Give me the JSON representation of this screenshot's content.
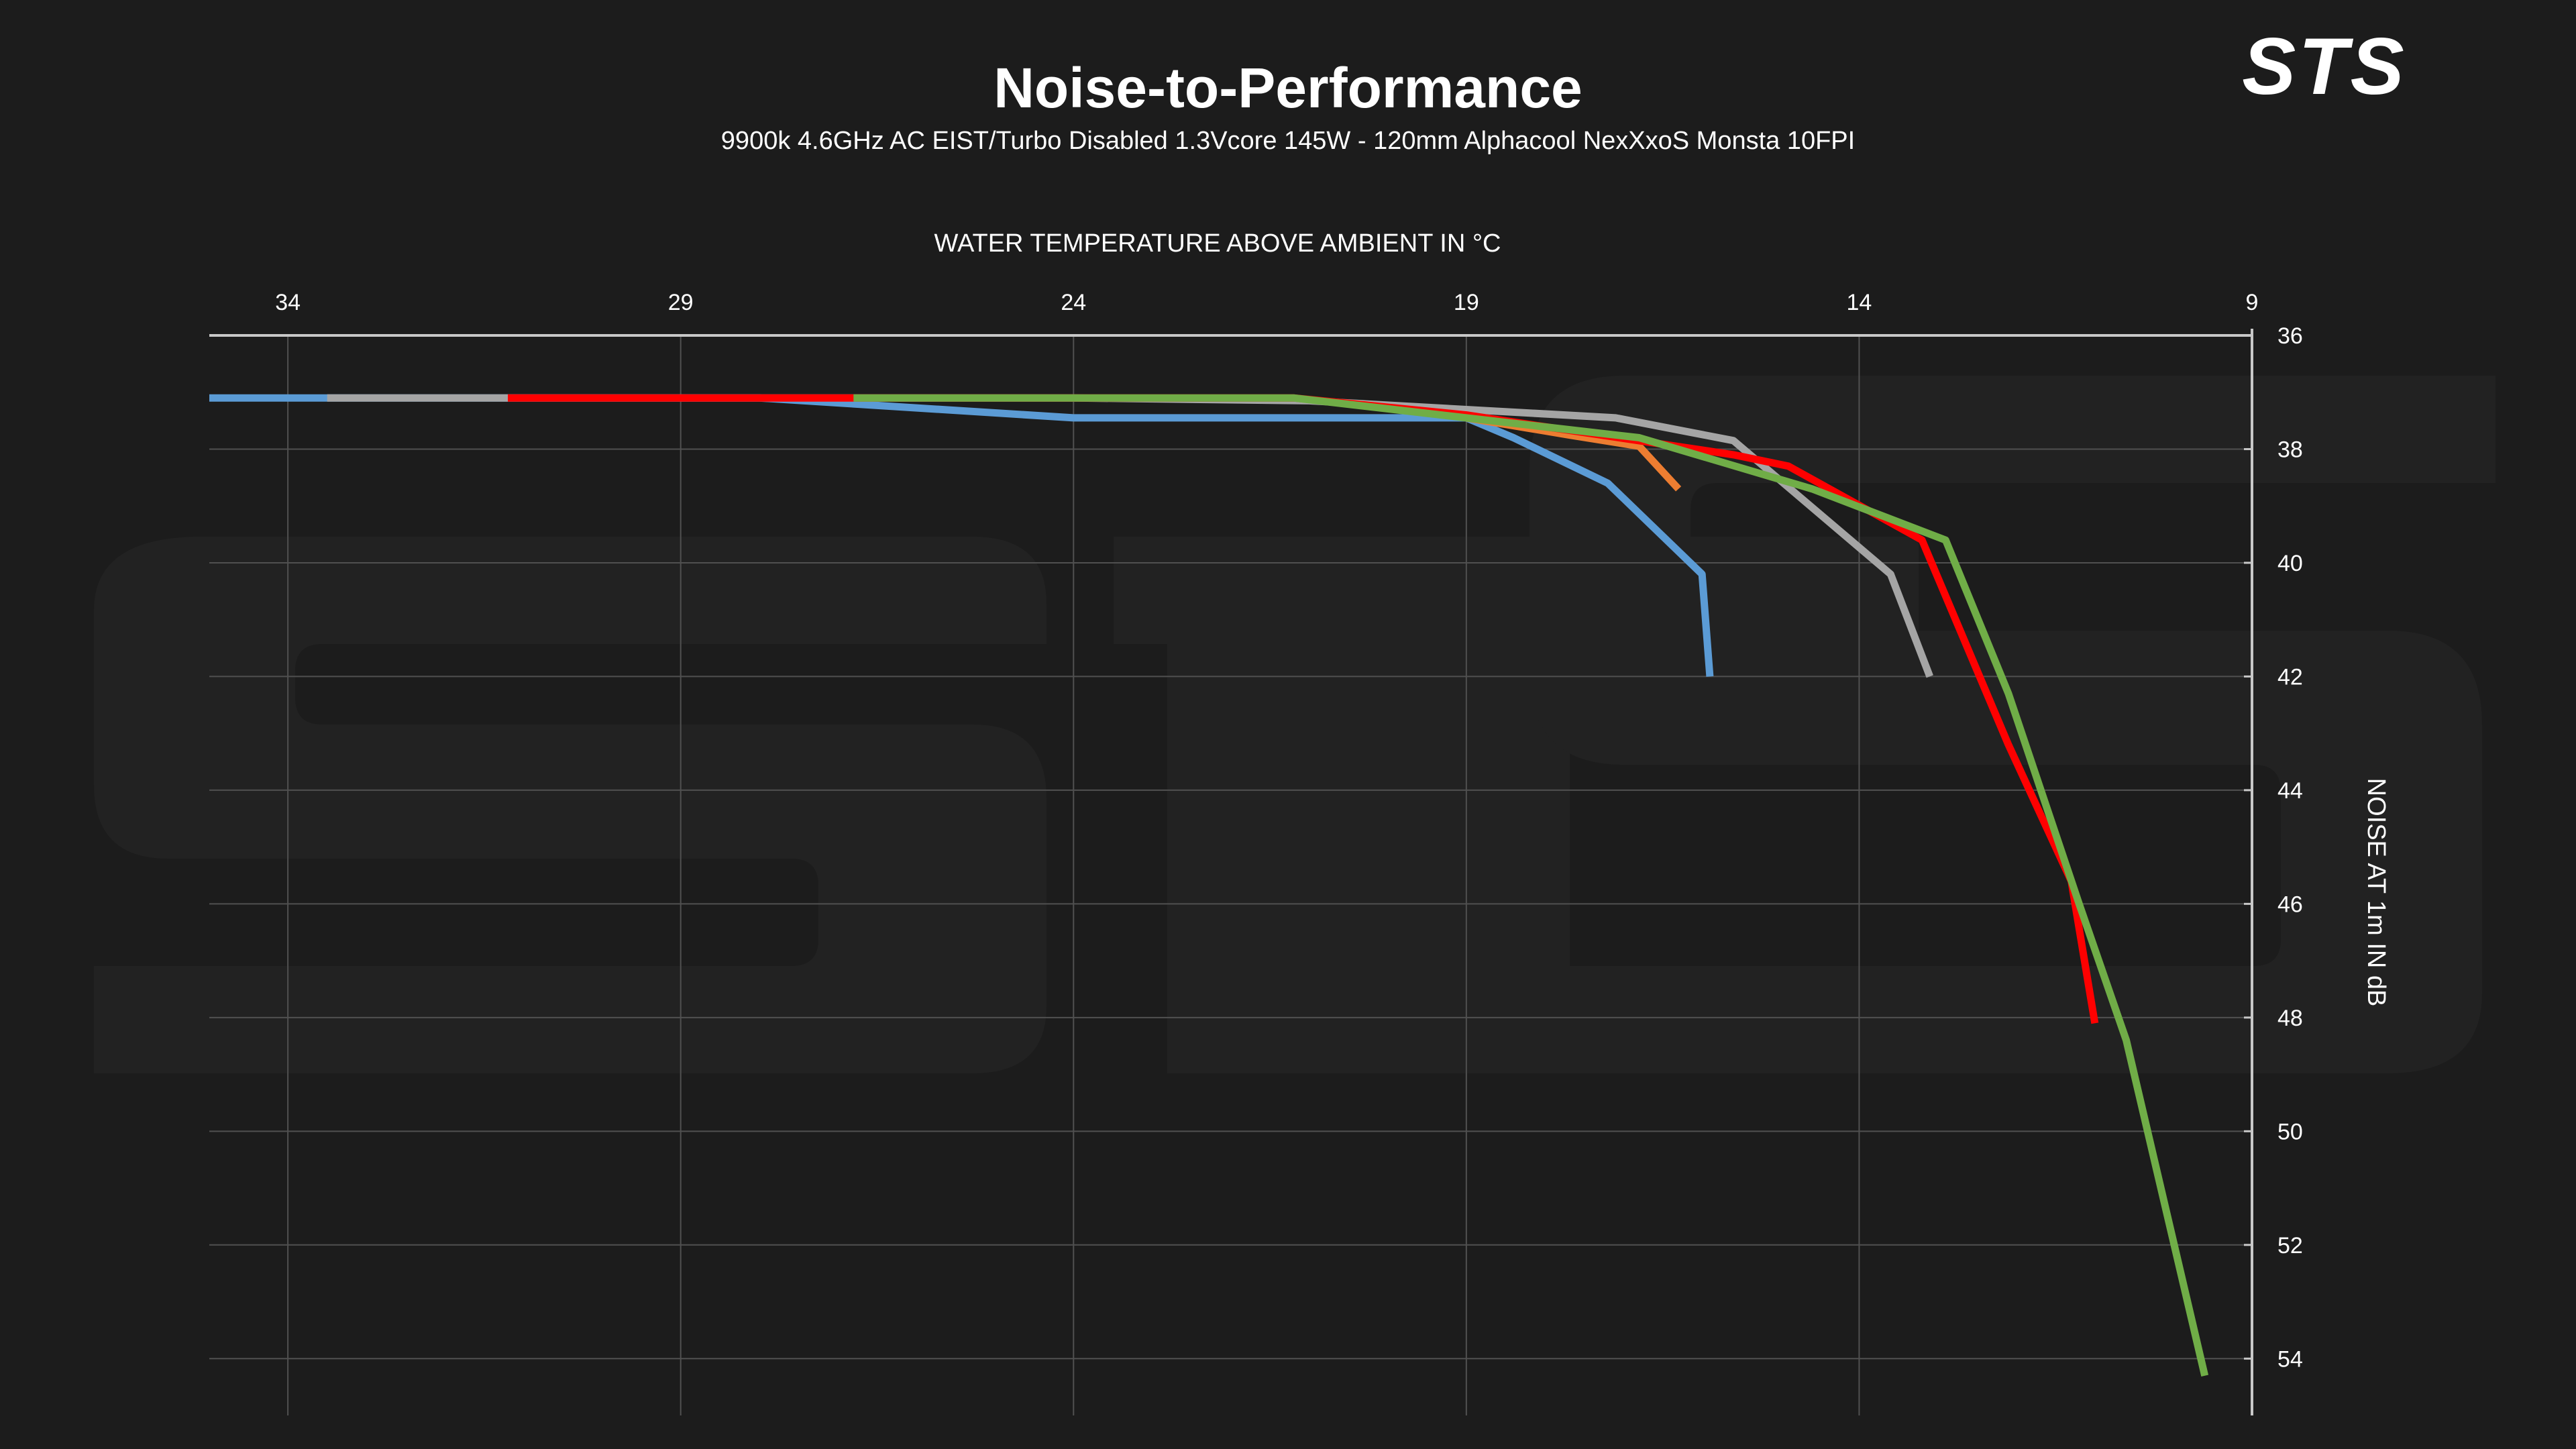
{
  "header": {
    "logo_text": "STS"
  },
  "colors": {
    "background": "#1c1c1c",
    "grid": "#505050",
    "axis": "#c8c8c8",
    "text": "#ffffff"
  },
  "chart_data": {
    "type": "line",
    "title": "Noise-to-Performance",
    "subtitle": "9900k 4.6GHz AC EIST/Turbo Disabled 1.3Vcore 145W - 120mm Alphacool NexXxoS Monsta 10FPI",
    "xlabel": "WATER TEMPERATURE ABOVE AMBIENT IN °C",
    "ylabel": "NOISE AT 1m IN dB",
    "x_axis_position": "top",
    "y_axis_position": "right",
    "x_reversed": true,
    "y_reversed": true,
    "xlim": [
      35,
      9
    ],
    "ylim": [
      36,
      55
    ],
    "x_ticks": [
      34,
      29,
      24,
      19,
      14,
      9
    ],
    "y_ticks": [
      36,
      38,
      40,
      42,
      44,
      46,
      48,
      50,
      52,
      54
    ],
    "grid": true,
    "legend": "none",
    "series": [
      {
        "color": "#5b9bd5",
        "points": [
          [
            35,
            37.1
          ],
          [
            33.5,
            37.1
          ],
          [
            28,
            37.1
          ],
          [
            24,
            37.45
          ],
          [
            19,
            37.45
          ],
          [
            18.4,
            37.8
          ],
          [
            17.2,
            38.6
          ],
          [
            16,
            40.2
          ],
          [
            15.9,
            42
          ]
        ]
      },
      {
        "color": "#ed7d31",
        "points": [
          [
            19,
            37.45
          ],
          [
            17.7,
            37.75
          ],
          [
            16.8,
            37.95
          ],
          [
            16.3,
            38.7
          ]
        ]
      },
      {
        "color": "#a5a5a5",
        "points": [
          [
            33.5,
            37.1
          ],
          [
            31.2,
            37.1
          ],
          [
            28,
            37.1
          ],
          [
            24,
            37.1
          ],
          [
            21,
            37.15
          ],
          [
            17.1,
            37.45
          ],
          [
            15.6,
            37.85
          ],
          [
            13.6,
            40.2
          ],
          [
            13.1,
            42
          ]
        ]
      },
      {
        "color": "#ff0000",
        "points": [
          [
            31.2,
            37.1
          ],
          [
            26.8,
            37.1
          ],
          [
            21.2,
            37.1
          ],
          [
            19,
            37.4
          ],
          [
            15.6,
            38.1
          ],
          [
            14.9,
            38.3
          ],
          [
            13.2,
            39.6
          ],
          [
            12.1,
            43.2
          ],
          [
            11.3,
            45.6
          ],
          [
            11,
            48.1
          ]
        ]
      },
      {
        "color": "#70ad47",
        "points": [
          [
            26.8,
            37.1
          ],
          [
            23,
            37.1
          ],
          [
            21.2,
            37.1
          ],
          [
            19,
            37.45
          ],
          [
            16.8,
            37.8
          ],
          [
            14.6,
            38.7
          ],
          [
            12.9,
            39.6
          ],
          [
            12.1,
            42.3
          ],
          [
            11.2,
            46
          ],
          [
            10.6,
            48.4
          ],
          [
            9.6,
            54.3
          ]
        ]
      }
    ]
  }
}
